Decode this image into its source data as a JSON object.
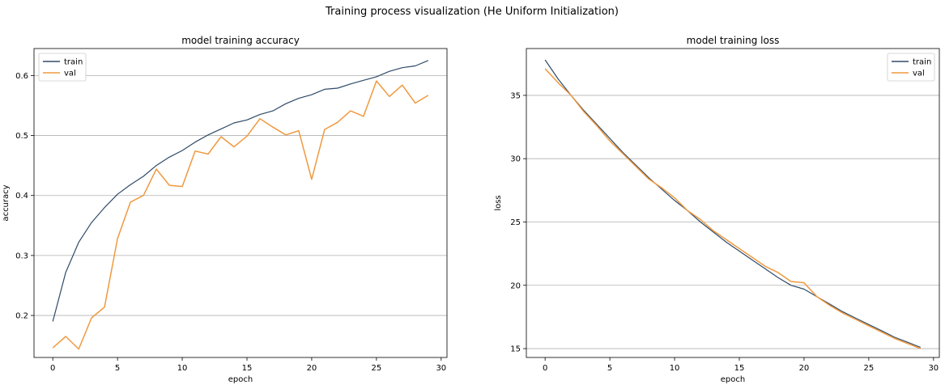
{
  "figure": {
    "suptitle": "Training process visualization (He Uniform Initialization)"
  },
  "chart_data": [
    {
      "type": "line",
      "title": "model training accuracy",
      "xlabel": "epoch",
      "ylabel": "accuracy",
      "xlim": [
        -1.45,
        30.45
      ],
      "ylim": [
        0.13,
        0.645
      ],
      "xticks": [
        0,
        5,
        10,
        15,
        20,
        25,
        30
      ],
      "yticks": [
        0.2,
        0.3,
        0.4,
        0.5,
        0.6
      ],
      "ytick_labels": [
        "0.2",
        "0.3",
        "0.4",
        "0.5",
        "0.6"
      ],
      "grid": "horizontal",
      "legend": "upper-left",
      "x": [
        0,
        1,
        2,
        3,
        4,
        5,
        6,
        7,
        8,
        9,
        10,
        11,
        12,
        13,
        14,
        15,
        16,
        17,
        18,
        19,
        20,
        21,
        22,
        23,
        24,
        25,
        26,
        27,
        28,
        29
      ],
      "series": [
        {
          "name": "train",
          "color": "#2f4b68",
          "values": [
            0.19,
            0.272,
            0.322,
            0.355,
            0.38,
            0.402,
            0.418,
            0.432,
            0.45,
            0.464,
            0.475,
            0.489,
            0.501,
            0.511,
            0.521,
            0.526,
            0.535,
            0.541,
            0.553,
            0.562,
            0.568,
            0.577,
            0.579,
            0.586,
            0.592,
            0.598,
            0.607,
            0.613,
            0.616,
            0.625
          ]
        },
        {
          "name": "val",
          "color": "#f0993f",
          "values": [
            0.146,
            0.165,
            0.144,
            0.196,
            0.214,
            0.328,
            0.389,
            0.4,
            0.444,
            0.417,
            0.415,
            0.474,
            0.469,
            0.498,
            0.481,
            0.499,
            0.528,
            0.514,
            0.501,
            0.508,
            0.427,
            0.51,
            0.522,
            0.541,
            0.532,
            0.591,
            0.565,
            0.584,
            0.554,
            0.567
          ]
        }
      ]
    },
    {
      "type": "line",
      "title": "model training loss",
      "xlabel": "epoch",
      "ylabel": "loss",
      "xlim": [
        -1.45,
        30.45
      ],
      "ylim": [
        14.3,
        38.7
      ],
      "xticks": [
        0,
        5,
        10,
        15,
        20,
        25,
        30
      ],
      "yticks": [
        15,
        20,
        25,
        30,
        35
      ],
      "ytick_labels": [
        "15",
        "20",
        "25",
        "30",
        "35"
      ],
      "grid": "horizontal",
      "legend": "upper-right",
      "x": [
        0,
        1,
        2,
        3,
        4,
        5,
        6,
        7,
        8,
        9,
        10,
        11,
        12,
        13,
        14,
        15,
        16,
        17,
        18,
        19,
        20,
        21,
        22,
        23,
        24,
        25,
        26,
        27,
        28,
        29
      ],
      "series": [
        {
          "name": "train",
          "color": "#2f4b68",
          "values": [
            37.8,
            36.3,
            35.0,
            33.8,
            32.7,
            31.6,
            30.5,
            29.5,
            28.5,
            27.6,
            26.7,
            25.9,
            25.0,
            24.2,
            23.4,
            22.7,
            22.0,
            21.3,
            20.6,
            20.0,
            19.7,
            19.1,
            18.5,
            17.9,
            17.4,
            16.9,
            16.4,
            15.9,
            15.5,
            15.1
          ]
        },
        {
          "name": "val",
          "color": "#f0993f",
          "values": [
            37.1,
            36.0,
            35.0,
            33.7,
            32.6,
            31.4,
            30.4,
            29.4,
            28.4,
            27.7,
            26.9,
            25.9,
            25.2,
            24.3,
            23.6,
            22.9,
            22.2,
            21.5,
            21.0,
            20.3,
            20.2,
            19.1,
            18.4,
            17.8,
            17.3,
            16.8,
            16.3,
            15.8,
            15.4,
            15.0
          ]
        }
      ]
    }
  ]
}
